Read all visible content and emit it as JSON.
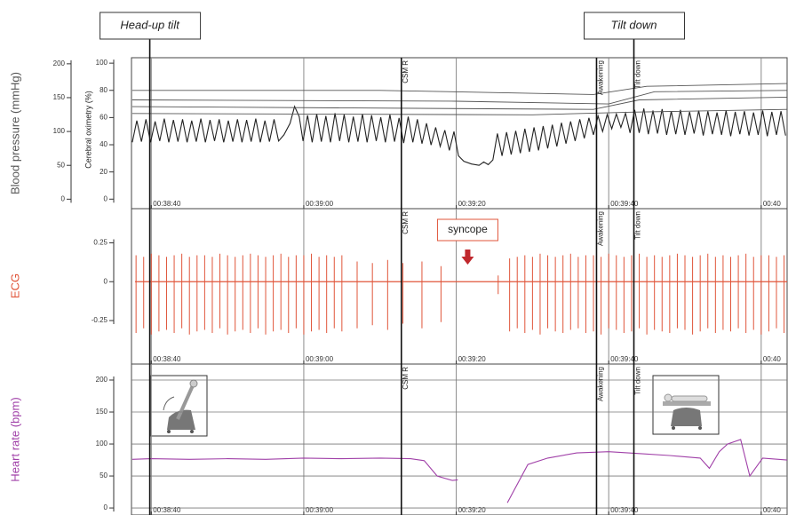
{
  "chart_data": [
    {
      "type": "line",
      "ylabel": "Blood pressure (mmHg)",
      "y2label": "Cerebral oximetry (%)",
      "xlim": [
        2317.4,
        2403.4
      ],
      "xticks": [
        {
          "value": 2320,
          "label": "00:38:40"
        },
        {
          "value": 2340,
          "label": "00:39:00"
        },
        {
          "value": 2360,
          "label": "00:39:20"
        },
        {
          "value": 2380,
          "label": "00:39:40"
        },
        {
          "value": 2400,
          "label": "00:40"
        }
      ],
      "ylim": [
        -14,
        209
      ],
      "yticks": [
        0,
        50,
        100,
        150,
        200
      ],
      "y2lim": [
        -7,
        104
      ],
      "y2ticks": [
        0,
        20,
        40,
        60,
        80,
        100
      ],
      "series": [
        {
          "color": "#222222",
          "x": [
            2317.5,
            2318.1,
            2318.7,
            2319.3,
            2319.9,
            2320.5,
            2321.1,
            2321.7,
            2322.3,
            2322.9,
            2323.5,
            2324.1,
            2324.7,
            2325.3,
            2325.9,
            2326.5,
            2327.1,
            2327.7,
            2328.3,
            2328.9,
            2329.5,
            2330.1,
            2330.7,
            2331.3,
            2331.9,
            2332.5,
            2333.1,
            2333.7,
            2334.3,
            2334.9,
            2335.5,
            2336.1,
            2336.7,
            2337.4,
            2338.2,
            2338.8,
            2339.4,
            2339.9,
            2340.5,
            2341.1,
            2341.7,
            2342.3,
            2342.9,
            2343.5,
            2344.1,
            2344.7,
            2345.3,
            2345.9,
            2346.5,
            2347.1,
            2347.7,
            2348.3,
            2348.9,
            2349.5,
            2350.1,
            2350.7,
            2351.3,
            2351.9,
            2352.5,
            2353.1,
            2353.7,
            2354.3,
            2354.9,
            2355.5,
            2356.1,
            2356.7,
            2357.3,
            2357.9,
            2358.5,
            2359.1,
            2359.7,
            2360.3,
            2361,
            2362,
            2363,
            2363.6,
            2364.2,
            2364.8,
            2365.4,
            2366,
            2366.6,
            2367.2,
            2367.8,
            2368.4,
            2369,
            2369.6,
            2370.2,
            2370.8,
            2371.4,
            2372,
            2372.6,
            2373.2,
            2373.8,
            2374.4,
            2375,
            2375.6,
            2376.2,
            2376.8,
            2377.4,
            2378,
            2378.6,
            2379.2,
            2379.8,
            2380.4,
            2381,
            2381.6,
            2382.2,
            2382.8,
            2383.4,
            2384,
            2384.6,
            2385.2,
            2385.8,
            2386.4,
            2387,
            2387.6,
            2388.2,
            2388.8,
            2389.4,
            2390,
            2390.6,
            2391.2,
            2391.8,
            2392.4,
            2393,
            2393.6,
            2394.2,
            2394.8,
            2395.4,
            2396,
            2396.6,
            2397.2,
            2397.8,
            2398.4,
            2399,
            2399.6,
            2400.2,
            2400.8,
            2401.4,
            2402,
            2402.6,
            2403.2
          ],
          "values": [
            84,
            116,
            85,
            118,
            84,
            115,
            86,
            119,
            84,
            117,
            85,
            118,
            84,
            116,
            85,
            119,
            84,
            117,
            86,
            118,
            84,
            116,
            85,
            118,
            84,
            117,
            85,
            119,
            84,
            116,
            85,
            118,
            86,
            95,
            112,
            137,
            122,
            86,
            124,
            84,
            126,
            85,
            123,
            84,
            127,
            86,
            125,
            84,
            122,
            85,
            126,
            84,
            124,
            86,
            121,
            84,
            125,
            85,
            120,
            83,
            122,
            84,
            118,
            82,
            112,
            80,
            106,
            78,
            102,
            72,
            100,
            64,
            56,
            52,
            50,
            55,
            51,
            58,
            97,
            64,
            99,
            66,
            101,
            68,
            104,
            70,
            106,
            72,
            108,
            75,
            110,
            78,
            113,
            82,
            115,
            86,
            118,
            90,
            120,
            95,
            123,
            100,
            125,
            104,
            126,
            106,
            127,
            98,
            132,
            98,
            134,
            96,
            131,
            97,
            133,
            95,
            130,
            96,
            132,
            95,
            129,
            97,
            131,
            94,
            130,
            96,
            128,
            95,
            131,
            93,
            129,
            96,
            130,
            94,
            128,
            95,
            131,
            93,
            129,
            95,
            130,
            94
          ]
        },
        {
          "color": "#555555",
          "axis": "y2",
          "x": [
            2317.5,
            2350,
            2378,
            2385,
            2403.4
          ],
          "values": [
            80,
            80,
            77,
            83,
            85
          ]
        },
        {
          "color": "#555555",
          "axis": "y2",
          "x": [
            2317.5,
            2360,
            2380,
            2386,
            2403.4
          ],
          "values": [
            73,
            72,
            70,
            79,
            80
          ]
        },
        {
          "color": "#555555",
          "axis": "y2",
          "x": [
            2317.5,
            2378,
            2384,
            2403.4
          ],
          "values": [
            68,
            66,
            73,
            75
          ]
        },
        {
          "color": "#555555",
          "axis": "y2",
          "x": [
            2317.5,
            2370,
            2383,
            2403.4
          ],
          "values": [
            63,
            62,
            64,
            66
          ]
        }
      ]
    },
    {
      "type": "spike",
      "ylabel": "ECG",
      "xlim": [
        2317.4,
        2403.4
      ],
      "xticks": [
        {
          "value": 2320,
          "label": "00:38:40"
        },
        {
          "value": 2340,
          "label": "00:39:00"
        },
        {
          "value": 2360,
          "label": "00:39:20"
        },
        {
          "value": 2380,
          "label": "00:39:40"
        },
        {
          "value": 2400,
          "label": "00:40"
        }
      ],
      "ylim": [
        -0.53,
        0.47
      ],
      "yticks": [
        -0.25,
        0,
        0.25
      ],
      "annotations": [
        {
          "text": "syncope",
          "x": 2361.5
        }
      ],
      "x": [
        2318,
        2319,
        2320,
        2321,
        2322,
        2323,
        2324,
        2325,
        2326,
        2327,
        2328,
        2329,
        2330,
        2331,
        2332,
        2333,
        2334,
        2335,
        2336,
        2337,
        2338,
        2339,
        2340,
        2341,
        2342,
        2343,
        2344,
        2345,
        2347,
        2349,
        2351,
        2353,
        2355.5,
        2358,
        2365.5,
        2367,
        2368,
        2369,
        2370,
        2371,
        2372,
        2373,
        2374,
        2375,
        2376,
        2377,
        2378,
        2379,
        2380,
        2381,
        2382,
        2383,
        2384,
        2385,
        2386,
        2387,
        2388,
        2389,
        2390,
        2391,
        2392,
        2393,
        2394,
        2395,
        2396,
        2397,
        2398,
        2399,
        2400,
        2401,
        2402,
        2403
      ],
      "series": [
        {
          "color": "#e0553a",
          "values": [
            0.17,
            0.16,
            0.18,
            0.17,
            0.16,
            0.17,
            0.18,
            0.16,
            0.17,
            0.17,
            0.16,
            0.18,
            0.17,
            0.16,
            0.17,
            0.18,
            0.17,
            0.16,
            0.17,
            0.18,
            0.16,
            0.17,
            0.17,
            0.18,
            0.16,
            0.17,
            0.16,
            0.17,
            0.13,
            0.12,
            0.14,
            0.12,
            0.13,
            0.1,
            0.04,
            0.15,
            0.16,
            0.17,
            0.16,
            0.18,
            0.17,
            0.16,
            0.17,
            0.18,
            0.16,
            0.17,
            0.17,
            0.16,
            0.18,
            0.17,
            0.16,
            0.17,
            0.18,
            0.16,
            0.17,
            0.16,
            0.17,
            0.18,
            0.17,
            0.16,
            0.17,
            0.18,
            0.16,
            0.17,
            0.16,
            0.17,
            0.18,
            0.16,
            0.17,
            0.17,
            0.16,
            0.17
          ]
        },
        {
          "color": "#e0553a",
          "values": [
            -0.33,
            -0.3,
            -0.34,
            -0.32,
            -0.31,
            -0.33,
            -0.3,
            -0.34,
            -0.32,
            -0.31,
            -0.33,
            -0.3,
            -0.34,
            -0.32,
            -0.31,
            -0.33,
            -0.3,
            -0.34,
            -0.32,
            -0.31,
            -0.33,
            -0.3,
            -0.34,
            -0.32,
            -0.31,
            -0.33,
            -0.3,
            -0.32,
            -0.3,
            -0.28,
            -0.31,
            -0.27,
            -0.3,
            -0.26,
            -0.08,
            -0.32,
            -0.3,
            -0.33,
            -0.31,
            -0.34,
            -0.3,
            -0.32,
            -0.33,
            -0.31,
            -0.3,
            -0.33,
            -0.32,
            -0.34,
            -0.3,
            -0.31,
            -0.33,
            -0.32,
            -0.3,
            -0.34,
            -0.31,
            -0.32,
            -0.33,
            -0.3,
            -0.31,
            -0.34,
            -0.32,
            -0.3,
            -0.33,
            -0.31,
            -0.32,
            -0.3,
            -0.33,
            -0.31,
            -0.34,
            -0.32,
            -0.3,
            -0.33
          ]
        }
      ]
    },
    {
      "type": "line",
      "ylabel": "Heart rate (bpm)",
      "grid": true,
      "xlim": [
        2317.4,
        2403.4
      ],
      "xticks": [
        {
          "value": 2320,
          "label": "00:38:40"
        },
        {
          "value": 2340,
          "label": "00:39:00"
        },
        {
          "value": 2360,
          "label": "00:39:20"
        },
        {
          "value": 2380,
          "label": "00:39:40"
        },
        {
          "value": 2400,
          "label": "00:40"
        }
      ],
      "ylim": [
        -11,
        225
      ],
      "yticks": [
        0,
        50,
        100,
        150,
        200
      ],
      "series": [
        {
          "color": "#a040a8",
          "x": [
            2317.5,
            2320,
            2325,
            2330,
            2335,
            2340,
            2345,
            2350,
            2354,
            2355.8,
            2357.5,
            2359.5,
            2360.2,
            2362,
            2366.7,
            2369.4,
            2372,
            2375.8,
            2380,
            2384,
            2388,
            2392,
            2393.2,
            2394.5,
            2395.6,
            2397.3,
            2398.5,
            2400.2,
            2403.4
          ],
          "values": [
            76,
            77,
            76,
            77,
            76,
            78,
            77,
            78,
            77,
            74,
            50,
            43,
            44,
            null,
            8,
            68,
            78,
            86,
            88,
            85,
            82,
            78,
            62,
            88,
            100,
            107,
            50,
            78,
            75
          ]
        }
      ]
    }
  ],
  "events": [
    {
      "label": "Head-up tilt",
      "x": 2319.8,
      "top": true,
      "in_panels": false
    },
    {
      "label": "CSM R",
      "x": 2352.8,
      "top": false,
      "in_panels": true
    },
    {
      "label": "Awakening",
      "x": 2378.4,
      "top": false,
      "in_panels": true
    },
    {
      "label": "Tilt down",
      "x": 2383.3,
      "top": true,
      "in_panels": true
    }
  ]
}
